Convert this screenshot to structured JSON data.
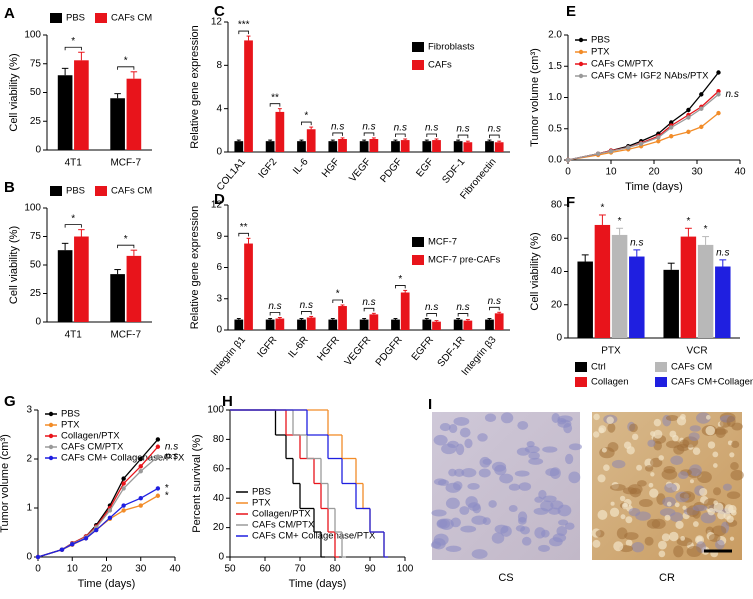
{
  "chart_data": [
    {
      "panel": "A",
      "type": "bar",
      "categories": [
        "4T1",
        "MCF-7"
      ],
      "series": [
        {
          "name": "PBS",
          "color": "#000000",
          "values": [
            65,
            45
          ],
          "errors": [
            6,
            4
          ]
        },
        {
          "name": "CAFs CM",
          "color": "#e8141b",
          "values": [
            78,
            62
          ],
          "errors": [
            7,
            6
          ]
        }
      ],
      "annotations": [
        "*",
        "*"
      ],
      "y_label": "Cell viability (%)",
      "ylim": [
        0,
        100
      ],
      "yticks": [
        0,
        25,
        50,
        75,
        100
      ]
    },
    {
      "panel": "B",
      "type": "bar",
      "categories": [
        "4T1",
        "MCF-7"
      ],
      "series": [
        {
          "name": "PBS",
          "color": "#000000",
          "values": [
            63,
            42
          ],
          "errors": [
            6,
            4
          ]
        },
        {
          "name": "CAFs CM",
          "color": "#e8141b",
          "values": [
            75,
            58
          ],
          "errors": [
            6,
            5
          ]
        }
      ],
      "annotations": [
        "*",
        "*"
      ],
      "y_label": "Cell viability (%)",
      "ylim": [
        0,
        100
      ],
      "yticks": [
        0,
        25,
        50,
        75,
        100
      ]
    },
    {
      "panel": "C",
      "type": "bar",
      "categories": [
        "COL1A1",
        "IGF2",
        "IL-6",
        "HGF",
        "VEGF",
        "PDGF",
        "EGF",
        "SDF-1",
        "Fibronectin"
      ],
      "series": [
        {
          "name": "Fibroblasts",
          "color": "#000000",
          "values": [
            1,
            1,
            1,
            1,
            1,
            1,
            1,
            1,
            1
          ],
          "errors": [
            0.1,
            0.1,
            0.1,
            0.1,
            0.1,
            0.1,
            0.1,
            0.1,
            0.1
          ]
        },
        {
          "name": "CAFs",
          "color": "#e8141b",
          "values": [
            10.3,
            3.7,
            2.1,
            1.2,
            1.2,
            1.1,
            1.1,
            0.9,
            0.9
          ],
          "errors": [
            0.4,
            0.3,
            0.2,
            0.1,
            0.1,
            0.1,
            0.1,
            0.1,
            0.1
          ]
        }
      ],
      "annotations": [
        "***",
        "**",
        "*",
        "n.s",
        "n.s",
        "n.s",
        "n.s",
        "n.s",
        "n.s"
      ],
      "y_label": "Relative gene expression",
      "ylim": [
        0,
        12
      ],
      "yticks": [
        0,
        4,
        8,
        12
      ]
    },
    {
      "panel": "D",
      "type": "bar",
      "categories": [
        "Integrin β1",
        "IGFR",
        "IL-6R",
        "HGFR",
        "VEGFR",
        "PDGFR",
        "EGFR",
        "SDF-1R",
        "Integrin β3"
      ],
      "series": [
        {
          "name": "MCF-7",
          "color": "#000000",
          "values": [
            1,
            1,
            1,
            1,
            1,
            1,
            1,
            1,
            1
          ],
          "errors": [
            0.1,
            0.1,
            0.1,
            0.1,
            0.1,
            0.1,
            0.1,
            0.1,
            0.1
          ]
        },
        {
          "name": "MCF-7 pre-CAFs",
          "color": "#e8141b",
          "values": [
            8.3,
            1.1,
            1.2,
            2.3,
            1.5,
            3.6,
            0.8,
            0.9,
            1.6
          ],
          "errors": [
            0.5,
            0.1,
            0.1,
            0.1,
            0.1,
            0.2,
            0.1,
            0.1,
            0.1
          ]
        }
      ],
      "annotations": [
        "**",
        "n.s",
        "n.s",
        "*",
        "n.s",
        "*",
        "n.s",
        "n.s",
        "n.s"
      ],
      "y_label": "Relative gene expression",
      "ylim": [
        0,
        12
      ],
      "yticks": [
        0,
        3,
        6,
        9,
        12
      ]
    },
    {
      "panel": "E",
      "type": "line",
      "x": [
        0,
        7,
        10,
        14,
        17,
        21,
        24,
        28,
        31,
        35
      ],
      "series": [
        {
          "name": "PBS",
          "color": "#000000",
          "values": [
            0,
            0.1,
            0.15,
            0.22,
            0.3,
            0.42,
            0.6,
            0.8,
            1.05,
            1.4
          ]
        },
        {
          "name": "PTX",
          "color": "#f28c28",
          "values": [
            0,
            0.08,
            0.12,
            0.17,
            0.22,
            0.3,
            0.38,
            0.45,
            0.53,
            0.75
          ]
        },
        {
          "name": "CAFs CM/PTX",
          "color": "#e8141b",
          "values": [
            0,
            0.1,
            0.15,
            0.2,
            0.27,
            0.38,
            0.55,
            0.72,
            0.85,
            1.1
          ]
        },
        {
          "name": "CAFs CM+ IGF2 NAbs/PTX",
          "color": "#9a9a9a",
          "values": [
            0,
            0.1,
            0.14,
            0.2,
            0.26,
            0.36,
            0.52,
            0.68,
            0.82,
            1.05
          ],
          "annotation": "n.s"
        }
      ],
      "x_label": "Time (days)",
      "y_label": "Tumor volume (cm³)",
      "xlim": [
        0,
        40
      ],
      "xticks": [
        0,
        10,
        20,
        30,
        40
      ],
      "ylim": [
        0,
        2
      ],
      "yticks": [
        {
          "value": 0,
          "label": "0.0"
        },
        {
          "value": 0.5,
          "label": "0.5"
        },
        {
          "value": 1,
          "label": "1.0"
        },
        {
          "value": 1.5,
          "label": "1.5"
        },
        {
          "value": 2,
          "label": "2.0"
        }
      ]
    },
    {
      "panel": "F",
      "type": "bar",
      "categories": [
        "PTX",
        "VCR"
      ],
      "series": [
        {
          "name": "Ctrl",
          "color": "#000000",
          "values": [
            46,
            41
          ],
          "errors": [
            4,
            4
          ]
        },
        {
          "name": "Collagen",
          "color": "#e8141b",
          "values": [
            68,
            61
          ],
          "errors": [
            6,
            5
          ]
        },
        {
          "name": "CAFs CM",
          "color": "#b8b8b8",
          "values": [
            62,
            56
          ],
          "errors": [
            4,
            5
          ]
        },
        {
          "name": "CAFs CM+Collagenase",
          "color": "#1f1fe0",
          "values": [
            49,
            43
          ],
          "errors": [
            4,
            4
          ]
        }
      ],
      "series_annotations": [
        null,
        [
          "*",
          "*"
        ],
        [
          "*",
          "*"
        ],
        [
          "n.s",
          "n.s"
        ]
      ],
      "y_label": "Cell viability (%)",
      "ylim": [
        0,
        80
      ],
      "yticks": [
        0,
        20,
        40,
        60,
        80
      ]
    },
    {
      "panel": "G",
      "type": "line",
      "x": [
        0,
        7,
        10,
        14,
        17,
        21,
        25,
        30,
        35
      ],
      "series": [
        {
          "name": "PBS",
          "color": "#000000",
          "values": [
            0,
            0.15,
            0.28,
            0.42,
            0.65,
            1.05,
            1.6,
            2.0,
            2.4
          ]
        },
        {
          "name": "PTX",
          "color": "#f28c28",
          "values": [
            0,
            0.15,
            0.25,
            0.38,
            0.55,
            0.78,
            0.95,
            1.05,
            1.25
          ],
          "annotation": "*"
        },
        {
          "name": "Collagen/PTX",
          "color": "#e8141b",
          "values": [
            0,
            0.15,
            0.28,
            0.42,
            0.62,
            1.0,
            1.5,
            1.85,
            2.25
          ],
          "annotation": "n.s"
        },
        {
          "name": "CAFs CM/PTX",
          "color": "#9a9a9a",
          "values": [
            0,
            0.15,
            0.27,
            0.4,
            0.6,
            0.95,
            1.4,
            1.75,
            2.05
          ],
          "annotation": "n.s"
        },
        {
          "name": "CAFs CM+ Collagenase/PTX",
          "color": "#1f1fe0",
          "values": [
            0,
            0.15,
            0.26,
            0.38,
            0.55,
            0.8,
            1.05,
            1.2,
            1.4
          ],
          "annotation": "*"
        }
      ],
      "x_label": "Time (days)",
      "y_label": "Tumor volume (cm³)",
      "xlim": [
        0,
        40
      ],
      "xticks": [
        0,
        10,
        20,
        30,
        40
      ],
      "ylim": [
        0,
        3
      ],
      "yticks": [
        0,
        1,
        2,
        3
      ]
    },
    {
      "panel": "H",
      "type": "step",
      "series": [
        {
          "name": "PBS",
          "color": "#000000",
          "x": [
            50,
            63,
            66,
            68,
            70,
            74,
            76
          ],
          "values": [
            100,
            83,
            67,
            50,
            33,
            17,
            0
          ]
        },
        {
          "name": "PTX",
          "color": "#f28c28",
          "x": [
            50,
            78,
            82,
            86,
            88,
            90,
            94
          ],
          "values": [
            100,
            83,
            67,
            50,
            33,
            17,
            0
          ]
        },
        {
          "name": "Collagen/PTX",
          "color": "#e8141b",
          "x": [
            50,
            66,
            70,
            74,
            76,
            78,
            80
          ],
          "values": [
            100,
            83,
            67,
            50,
            33,
            17,
            0
          ]
        },
        {
          "name": "CAFs CM/PTX",
          "color": "#9a9a9a",
          "x": [
            50,
            68,
            72,
            76,
            78,
            80,
            82
          ],
          "values": [
            100,
            83,
            67,
            50,
            33,
            17,
            0
          ]
        },
        {
          "name": "CAFs CM+ Collagenase/PTX",
          "color": "#1f1fe0",
          "x": [
            50,
            72,
            78,
            82,
            86,
            90,
            94
          ],
          "values": [
            100,
            83,
            67,
            50,
            33,
            17,
            0
          ]
        }
      ],
      "x_label": "Time (days)",
      "y_label": "Percent survival (%)",
      "xlim": [
        50,
        100
      ],
      "xticks": [
        50,
        60,
        70,
        80,
        90,
        100
      ],
      "ylim": [
        0,
        100
      ],
      "yticks": [
        0,
        20,
        40,
        60,
        80,
        100
      ]
    }
  ],
  "image_panel": {
    "panel": "I",
    "captions": [
      "CS",
      "CR"
    ]
  }
}
